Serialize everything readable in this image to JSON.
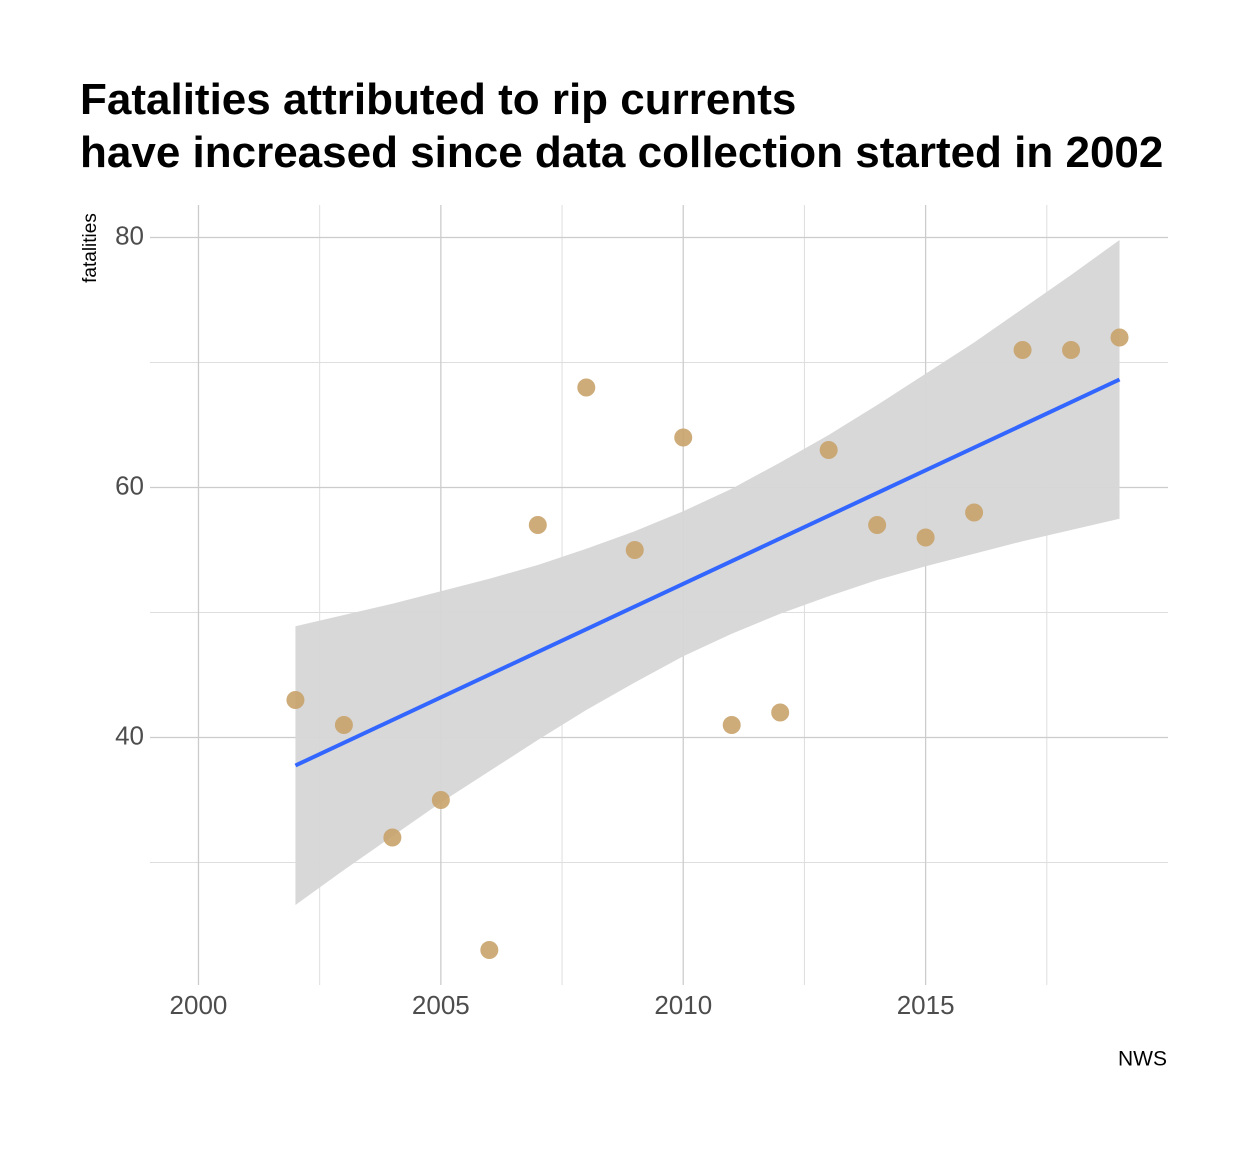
{
  "chart_data": {
    "type": "scatter",
    "title": [
      "Fatalities attributed to rip currents",
      "have increased since data collection started in 2002"
    ],
    "y_label": "fatalities",
    "caption": "NWS",
    "x": [
      2002,
      2003,
      2004,
      2005,
      2006,
      2007,
      2008,
      2009,
      2010,
      2011,
      2012,
      2013,
      2014,
      2015,
      2016,
      2017,
      2018,
      2019
    ],
    "series": [
      {
        "color": "#c9a36b",
        "values": [
          43,
          41,
          32,
          35,
          23,
          57,
          68,
          55,
          64,
          41,
          42,
          63,
          57,
          56,
          58,
          71,
          71,
          72
        ]
      }
    ],
    "trend": {
      "color": "#3366ff",
      "x": [
        2002,
        2019
      ],
      "values": [
        37.76,
        68.64
      ]
    },
    "band": {
      "color": "#d6d6d6",
      "x": [
        2002,
        2003,
        2004,
        2005,
        2006,
        2007,
        2008,
        2009,
        2010,
        2011,
        2012,
        2013,
        2014,
        2015,
        2016,
        2017,
        2018,
        2019
      ],
      "lower": [
        26.6,
        29.4,
        32.1,
        34.8,
        37.3,
        39.8,
        42.2,
        44.4,
        46.5,
        48.3,
        49.9,
        51.3,
        52.6,
        53.7,
        54.7,
        55.7,
        56.6,
        57.5
      ],
      "upper": [
        48.9,
        49.8,
        50.7,
        51.7,
        52.7,
        53.8,
        55.1,
        56.5,
        58.1,
        59.9,
        62.0,
        64.2,
        66.6,
        69.1,
        71.6,
        74.3,
        77.0,
        79.8
      ]
    },
    "xlim": [
      1999.0,
      2020.0
    ],
    "ylim": [
      20.2,
      82.6
    ],
    "xticks": [
      2000,
      2005,
      2010,
      2015
    ],
    "yticks": [
      40,
      60,
      80
    ],
    "x_minor_ticks": [
      2002.5,
      2007.5,
      2012.5,
      2017.5
    ],
    "y_minor_ticks": [
      30,
      50,
      70
    ],
    "grid": true
  }
}
